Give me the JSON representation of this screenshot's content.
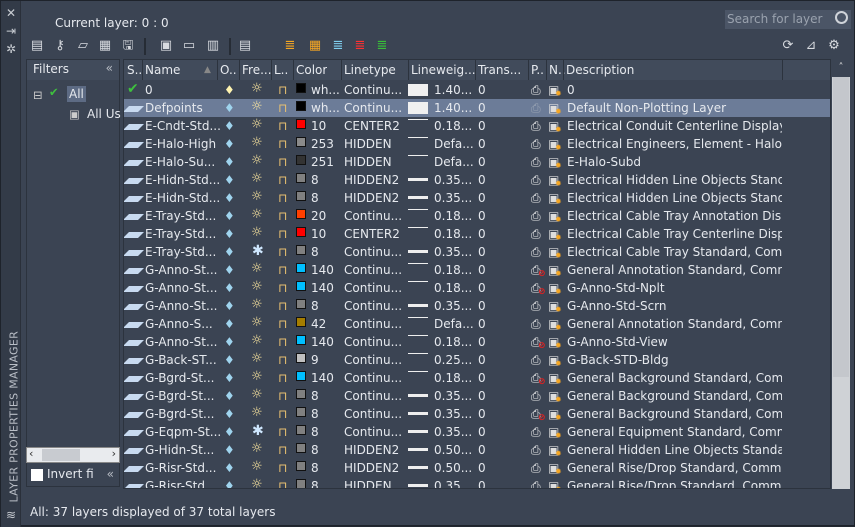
{
  "window": {
    "vertical_title": "LAYER PROPERTIES MANAGER",
    "current_layer": "Current layer: 0 : 0",
    "search_placeholder": "Search for layer"
  },
  "toolbar": {
    "left": [
      "new-layer",
      "new-layer-vp-frozen",
      "delete-layer",
      "set-current",
      "save-state",
      "new-property-filter",
      "new-group-filter",
      "layer-states",
      "layer-isolate"
    ],
    "middle": [
      "new-layer-a",
      "layer-merge",
      "layer-freeze",
      "layer-delete",
      "layer-ok"
    ],
    "right": [
      "refresh",
      "settings-display",
      "gear"
    ]
  },
  "filters": {
    "title": "Filters",
    "tree": [
      {
        "label": "All"
      },
      {
        "label": "All Used Layers"
      }
    ],
    "invert_label": "Invert fi"
  },
  "columns": [
    "S..",
    "Name",
    "O..",
    "Fre...",
    "L..",
    "Color",
    "Linetype",
    "Lineweig...",
    "Trans...",
    "P..",
    "N..",
    "Description"
  ],
  "colors": {
    "selected_row": "#6c7c98",
    "background": "#3b4453",
    "header": "#414b5b"
  },
  "rows": [
    {
      "status": "current",
      "name": "0",
      "frozen": false,
      "color_name": "wh...",
      "color": "#000000",
      "linetype": "Continu...",
      "lw_style": "box",
      "lineweight": "1.40...",
      "trans": "0",
      "plot": true,
      "desc": "0"
    },
    {
      "status": "layer",
      "name": "Defpoints",
      "selected": true,
      "frozen": false,
      "color_name": "wh...",
      "color": "#000000",
      "linetype": "Continu...",
      "lw_style": "box",
      "lineweight": "1.40...",
      "trans": "0",
      "plot": "dim",
      "desc": "Default Non-Plotting Layer"
    },
    {
      "name": "E-Cndt-Std...",
      "frozen": false,
      "color_name": "10",
      "color": "#ff0000",
      "linetype": "CENTER2",
      "lw_style": "thin",
      "lineweight": "0.18...",
      "trans": "0",
      "plot": true,
      "desc": "Electrical  Conduit  Centerline  Display..."
    },
    {
      "name": "E-Halo-High",
      "frozen": false,
      "color_name": "253",
      "color": "#8a8a8a",
      "linetype": "HIDDEN",
      "lw_style": "thin",
      "lineweight": "Defa...",
      "trans": "0",
      "plot": true,
      "desc": "Electrical Engineers, Element - Halo,..."
    },
    {
      "name": "E-Halo-Su...",
      "frozen": false,
      "color_name": "251",
      "color": "#333333",
      "linetype": "HIDDEN",
      "lw_style": "thin",
      "lineweight": "Defa...",
      "trans": "0",
      "plot": true,
      "desc": "E-Halo-Subd"
    },
    {
      "name": "E-Hidn-Std...",
      "frozen": false,
      "color_name": "8",
      "color": "#808080",
      "linetype": "HIDDEN2",
      "lw_style": "thick",
      "lineweight": "0.35...",
      "trans": "0",
      "plot": true,
      "desc": "Electrical Hidden Line Objects Standa..."
    },
    {
      "name": "E-Hidn-Std...",
      "frozen": false,
      "color_name": "8",
      "color": "#808080",
      "linetype": "HIDDEN2",
      "lw_style": "thick",
      "lineweight": "0.35...",
      "trans": "0",
      "plot": true,
      "desc": "Electrical Hidden Line Objects Standa..."
    },
    {
      "name": "E-Tray-Std...",
      "frozen": false,
      "color_name": "20",
      "color": "#ff3f00",
      "linetype": "Continu...",
      "lw_style": "thin",
      "lineweight": "0.18...",
      "trans": "0",
      "plot": true,
      "desc": "Electrical Cable Tray Annotation Displ..."
    },
    {
      "name": "E-Tray-Std...",
      "frozen": false,
      "color_name": "10",
      "color": "#ff0000",
      "linetype": "CENTER2",
      "lw_style": "thin",
      "lineweight": "0.18...",
      "trans": "0",
      "plot": true,
      "desc": "Electrical Cable Tray Centerline Displa..."
    },
    {
      "name": "E-Tray-Std...",
      "frozen": true,
      "color_name": "8",
      "color": "#808080",
      "linetype": "Continu...",
      "lw_style": "thick",
      "lineweight": "0.35...",
      "trans": "0",
      "plot": true,
      "desc": "Electrical Cable Tray Standard, Comm..."
    },
    {
      "name": "G-Anno-St...",
      "frozen": false,
      "color_name": "140",
      "color": "#00bfff",
      "linetype": "Continu...",
      "lw_style": "thin",
      "lineweight": "0.18...",
      "trans": "0",
      "plot": false,
      "desc": "General Annotation Standard, Comm..."
    },
    {
      "name": "G-Anno-St...",
      "frozen": false,
      "color_name": "140",
      "color": "#00bfff",
      "linetype": "Continu...",
      "lw_style": "thin",
      "lineweight": "0.18...",
      "trans": "0",
      "plot": false,
      "desc": "G-Anno-Std-Nplt"
    },
    {
      "name": "G-Anno-St...",
      "frozen": false,
      "color_name": "8",
      "color": "#808080",
      "linetype": "Continu...",
      "lw_style": "thick",
      "lineweight": "0.35...",
      "trans": "0",
      "plot": true,
      "desc": "G-Anno-Std-Scrn"
    },
    {
      "name": "G-Anno-S...",
      "frozen": false,
      "color_name": "42",
      "color": "#a57d00",
      "linetype": "Continu...",
      "lw_style": "thin",
      "lineweight": "Defa...",
      "trans": "0",
      "plot": true,
      "desc": "General Annotation Standard, Comm..."
    },
    {
      "name": "G-Anno-St...",
      "frozen": false,
      "color_name": "140",
      "color": "#00bfff",
      "linetype": "Continu...",
      "lw_style": "thin",
      "lineweight": "0.18...",
      "trans": "0",
      "plot": false,
      "desc": "G-Anno-Std-View"
    },
    {
      "name": "G-Back-ST...",
      "frozen": false,
      "color_name": "9",
      "color": "#c0c0c0",
      "linetype": "Continu...",
      "lw_style": "thin",
      "lineweight": "0.25...",
      "trans": "0",
      "plot": true,
      "desc": "G-Back-STD-Bldg"
    },
    {
      "name": "G-Bgrd-St...",
      "frozen": false,
      "color_name": "140",
      "color": "#00bfff",
      "linetype": "Continu...",
      "lw_style": "thin",
      "lineweight": "0.18...",
      "trans": "0",
      "plot": false,
      "desc": "General Background Standard, Com..."
    },
    {
      "name": "G-Bgrd-St...",
      "frozen": false,
      "color_name": "8",
      "color": "#808080",
      "linetype": "Continu...",
      "lw_style": "thick",
      "lineweight": "0.35...",
      "trans": "0",
      "plot": true,
      "desc": "General Background Standard, Com..."
    },
    {
      "name": "G-Bgrd-St...",
      "frozen": false,
      "color_name": "8",
      "color": "#808080",
      "linetype": "Continu...",
      "lw_style": "thick",
      "lineweight": "0.35...",
      "trans": "0",
      "plot": false,
      "desc": "General Background Standard, Com..."
    },
    {
      "name": "G-Eqpm-St...",
      "frozen": true,
      "color_name": "8",
      "color": "#808080",
      "linetype": "Continu...",
      "lw_style": "thick",
      "lineweight": "0.35...",
      "trans": "0",
      "plot": true,
      "desc": "General Equipment Standard, Comm..."
    },
    {
      "name": "G-Hidn-St...",
      "frozen": false,
      "color_name": "8",
      "color": "#808080",
      "linetype": "HIDDEN2",
      "lw_style": "thick",
      "lineweight": "0.50...",
      "trans": "0",
      "plot": true,
      "desc": "General Hidden Line Objects Standar..."
    },
    {
      "name": "G-Risr-Std...",
      "frozen": false,
      "color_name": "8",
      "color": "#808080",
      "linetype": "HIDDEN2",
      "lw_style": "thick",
      "lineweight": "0.50...",
      "trans": "0",
      "plot": true,
      "desc": "General Rise/Drop Standard, Commo..."
    },
    {
      "name": "G-Risr-Std",
      "frozen": false,
      "color_name": "8",
      "color": "#808080",
      "linetype": "HIDDEN",
      "lw_style": "thick",
      "lineweight": "0.35...",
      "trans": "0",
      "plot": true,
      "desc": "General Rise/Drop Standard, Common"
    }
  ],
  "status_bar": "All: 37 layers displayed of 37 total layers"
}
